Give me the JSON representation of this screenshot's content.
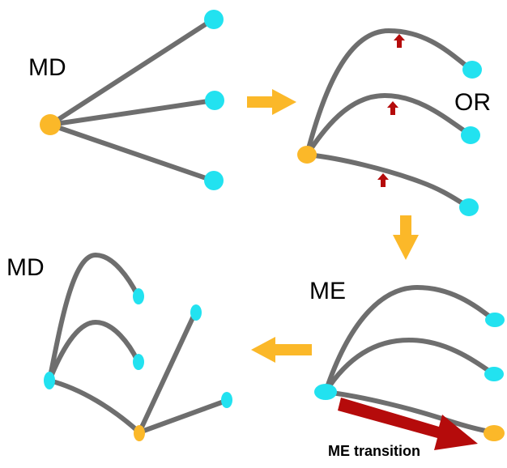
{
  "labels": {
    "panel1": "MD",
    "panel2": "OR",
    "panel3": "ME",
    "panel4": "MD",
    "transition": "ME transition"
  },
  "colors": {
    "edge": "#6e6e6e",
    "hub_node": "#fbb829",
    "leaf_node": "#22e2f0",
    "flow_arrow": "#fbb829",
    "force_arrow": "#b50b0b",
    "transition_arrow": "#b50b0b"
  }
}
